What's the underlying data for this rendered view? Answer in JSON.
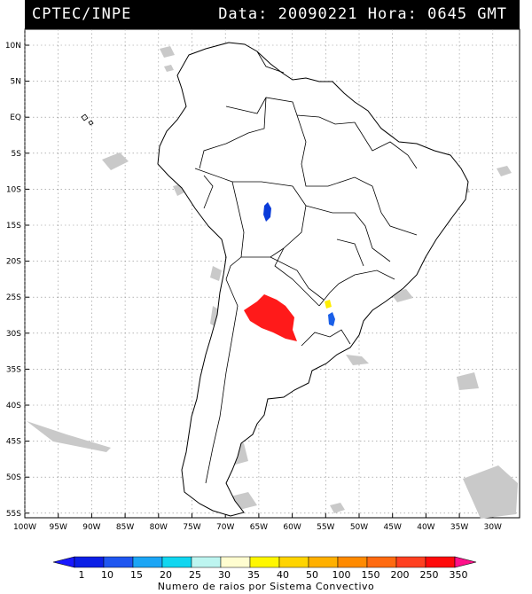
{
  "header": {
    "source": "CPTEC/INPE",
    "datetime": "Data: 20090221 Hora: 0645 GMT"
  },
  "map": {
    "lat_labels": [
      "10N",
      "5N",
      "EQ",
      "5S",
      "10S",
      "15S",
      "20S",
      "25S",
      "30S",
      "35S",
      "40S",
      "45S",
      "50S",
      "55S"
    ],
    "lon_labels": [
      "100W",
      "95W",
      "90W",
      "85W",
      "80W",
      "75W",
      "70W",
      "65W",
      "60W",
      "55W",
      "50W",
      "45W",
      "40W",
      "35W",
      "30W"
    ],
    "features": {
      "red_system": {
        "color": "#ff1a1a",
        "value": "350"
      },
      "blue_system_brazil": {
        "color": "#0a3bd9",
        "value": "1"
      },
      "blue_system_south": {
        "color": "#1a5fe8",
        "value": "1"
      },
      "yellow_system": {
        "color": "#ffee00",
        "value": "40"
      }
    }
  },
  "legend": {
    "title": "Numero de raios por Sistema Convectivo",
    "ticks": [
      "1",
      "10",
      "15",
      "20",
      "25",
      "30",
      "35",
      "40",
      "50",
      "100",
      "150",
      "200",
      "250",
      "350"
    ],
    "colors": [
      "#0b1fe6",
      "#1f56f0",
      "#1ba5f5",
      "#11d6f0",
      "#bdf5f0",
      "#fffdd0",
      "#fff700",
      "#ffd400",
      "#ffb000",
      "#ff8a00",
      "#ff6a10",
      "#ff4020",
      "#ff0a0a"
    ],
    "arrow_left_color": "#1818ff",
    "arrow_right_color": "#ff108a"
  }
}
